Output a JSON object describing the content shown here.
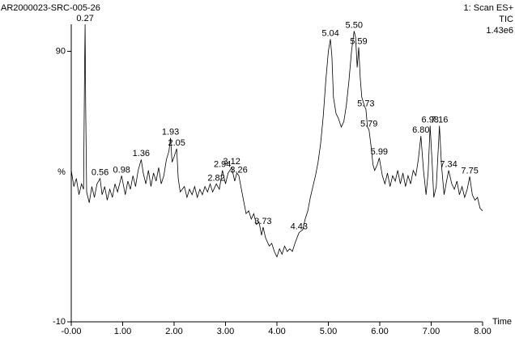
{
  "chart_data": {
    "type": "line",
    "title": "AR2000023-SRC-005-26",
    "header_right": [
      "1: Scan ES+",
      "TIC",
      "1.43e6"
    ],
    "xlabel": "Time",
    "ylabel": "%",
    "color": "#000000",
    "xlim": [
      0,
      8
    ],
    "ylim": [
      -10,
      100
    ],
    "xticks": [
      {
        "value": 0,
        "label": "-0.00"
      },
      {
        "value": 1,
        "label": "1.00"
      },
      {
        "value": 2,
        "label": "2.00"
      },
      {
        "value": 3,
        "label": "3.00"
      },
      {
        "value": 4,
        "label": "4.00"
      },
      {
        "value": 5,
        "label": "5.00"
      },
      {
        "value": 6,
        "label": "6.00"
      },
      {
        "value": 7,
        "label": "7.00"
      },
      {
        "value": 8,
        "label": "8.00"
      }
    ],
    "yticks": [
      -10,
      90
    ],
    "x": [
      0.0,
      0.05,
      0.1,
      0.15,
      0.2,
      0.24,
      0.26,
      0.27,
      0.28,
      0.3,
      0.35,
      0.4,
      0.45,
      0.5,
      0.56,
      0.6,
      0.65,
      0.7,
      0.75,
      0.8,
      0.85,
      0.9,
      0.98,
      1.05,
      1.1,
      1.15,
      1.2,
      1.25,
      1.3,
      1.36,
      1.4,
      1.45,
      1.5,
      1.55,
      1.6,
      1.65,
      1.7,
      1.75,
      1.8,
      1.85,
      1.9,
      1.93,
      1.96,
      2.0,
      2.05,
      2.08,
      2.12,
      2.2,
      2.25,
      2.3,
      2.35,
      2.4,
      2.45,
      2.5,
      2.55,
      2.6,
      2.65,
      2.7,
      2.75,
      2.82,
      2.88,
      2.94,
      3.0,
      3.05,
      3.12,
      3.18,
      3.22,
      3.26,
      3.3,
      3.35,
      3.4,
      3.45,
      3.5,
      3.55,
      3.6,
      3.65,
      3.7,
      3.73,
      3.78,
      3.85,
      3.9,
      3.95,
      4.0,
      4.05,
      4.1,
      4.15,
      4.2,
      4.25,
      4.3,
      4.35,
      4.43,
      4.5,
      4.55,
      4.6,
      4.65,
      4.7,
      4.75,
      4.8,
      4.85,
      4.9,
      4.95,
      5.0,
      5.04,
      5.07,
      5.1,
      5.15,
      5.2,
      5.25,
      5.3,
      5.35,
      5.4,
      5.45,
      5.5,
      5.53,
      5.56,
      5.59,
      5.62,
      5.65,
      5.7,
      5.73,
      5.76,
      5.79,
      5.83,
      5.87,
      5.9,
      5.95,
      5.99,
      6.05,
      6.1,
      6.15,
      6.2,
      6.25,
      6.3,
      6.35,
      6.4,
      6.45,
      6.5,
      6.55,
      6.6,
      6.65,
      6.7,
      6.75,
      6.8,
      6.85,
      6.9,
      6.94,
      6.98,
      7.02,
      7.05,
      7.1,
      7.16,
      7.2,
      7.25,
      7.3,
      7.34,
      7.4,
      7.45,
      7.5,
      7.55,
      7.6,
      7.65,
      7.7,
      7.75,
      7.8,
      7.85,
      7.9,
      7.95,
      8.0
    ],
    "values": [
      46,
      40,
      43,
      37,
      41,
      39,
      85,
      100,
      70,
      38,
      34,
      40,
      36,
      41,
      43,
      37,
      40,
      35,
      39,
      36,
      41,
      38,
      44,
      37,
      42,
      39,
      44,
      40,
      46,
      50,
      45,
      41,
      46,
      40,
      45,
      42,
      47,
      41,
      44,
      50,
      53,
      58,
      49,
      51,
      54,
      43,
      38,
      40,
      36,
      39,
      37,
      40,
      36,
      39,
      37,
      40,
      38,
      41,
      38,
      41,
      39,
      46,
      41,
      45,
      47,
      42,
      45,
      44,
      40,
      35,
      30,
      31,
      28,
      30,
      26,
      27,
      22,
      25,
      21,
      18,
      19,
      16,
      14,
      17,
      15,
      18,
      16,
      17,
      16,
      19,
      23,
      24,
      28,
      31,
      36,
      40,
      44,
      49,
      56,
      66,
      79,
      90,
      94.5,
      88,
      73,
      67,
      65,
      62,
      64,
      70,
      79,
      90,
      97.5,
      95,
      84,
      91.5,
      80,
      73,
      70,
      68.5,
      62,
      61,
      55,
      48,
      46,
      48,
      50.6,
      44,
      41,
      45,
      40,
      44,
      42,
      46,
      41,
      45,
      40,
      44,
      41,
      46,
      44,
      50,
      58.7,
      46,
      37,
      45,
      62.5,
      48,
      36,
      40,
      62.5,
      48,
      37,
      42,
      46,
      41,
      39,
      42,
      37,
      40,
      36,
      39,
      43.7,
      37,
      35,
      36,
      32,
      31
    ],
    "annotations": [
      {
        "text": "0.27",
        "x": 0.27,
        "y": 100
      },
      {
        "text": "0.56",
        "x": 0.56,
        "y": 43
      },
      {
        "text": "0.98",
        "x": 0.98,
        "y": 44
      },
      {
        "text": "1.36",
        "x": 1.36,
        "y": 50
      },
      {
        "text": "1.93",
        "x": 1.93,
        "y": 58
      },
      {
        "text": "2.05",
        "x": 2.05,
        "y": 54
      },
      {
        "text": "2.82",
        "x": 2.82,
        "y": 41
      },
      {
        "text": "2.94",
        "x": 2.94,
        "y": 46
      },
      {
        "text": "3.12",
        "x": 3.12,
        "y": 47
      },
      {
        "text": "3.26",
        "x": 3.26,
        "y": 44
      },
      {
        "text": "3.73",
        "x": 3.73,
        "y": 25
      },
      {
        "text": "4.43",
        "x": 4.43,
        "y": 23
      },
      {
        "text": "5.04",
        "x": 5.04,
        "y": 94.5
      },
      {
        "text": "5.50",
        "x": 5.5,
        "y": 97.5
      },
      {
        "text": "5.59",
        "x": 5.59,
        "y": 91.5
      },
      {
        "text": "5.73",
        "x": 5.73,
        "y": 68.5
      },
      {
        "text": "5.79",
        "x": 5.79,
        "y": 61
      },
      {
        "text": "5.99",
        "x": 5.99,
        "y": 50.6
      },
      {
        "text": "6.80",
        "x": 6.8,
        "y": 58.7
      },
      {
        "text": "6.98",
        "x": 6.98,
        "y": 62.5
      },
      {
        "text": "7.16",
        "x": 7.16,
        "y": 62.5
      },
      {
        "text": "7.34",
        "x": 7.34,
        "y": 46
      },
      {
        "text": "7.75",
        "x": 7.75,
        "y": 43.7
      }
    ]
  }
}
